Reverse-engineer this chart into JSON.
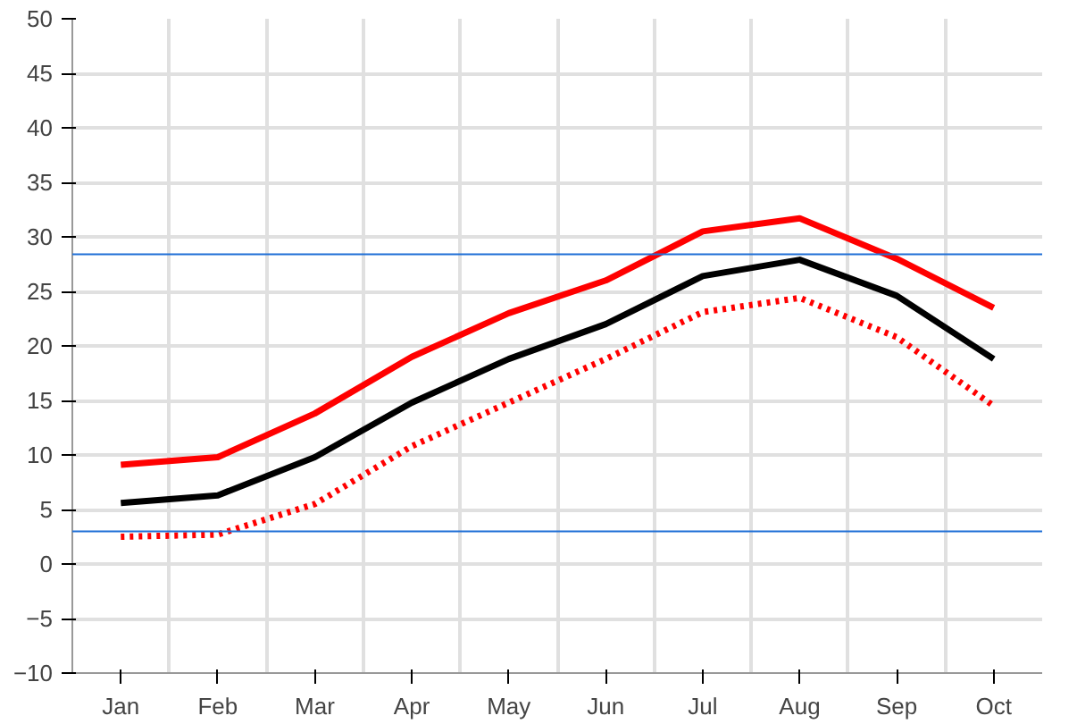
{
  "chart_data": {
    "type": "line",
    "categories": [
      "Jan",
      "Feb",
      "Mar",
      "Apr",
      "May",
      "Jun",
      "Jul",
      "Aug",
      "Sep",
      "Oct"
    ],
    "series": [
      {
        "color": "#ff0000",
        "values": [
          9.1,
          9.8,
          13.8,
          19,
          23,
          26,
          30.5,
          31.7,
          28,
          23.5
        ]
      },
      {
        "color": "#000000",
        "values": [
          5.6,
          6.3,
          9.8,
          14.8,
          18.8,
          22,
          26.4,
          27.9,
          24.6,
          18.8
        ]
      },
      {
        "color": "#ff0000",
        "line_style": "dotted",
        "values": [
          2.5,
          2.7,
          5.5,
          10.8,
          14.8,
          18.8,
          23.1,
          24.4,
          20.8,
          14.5
        ]
      }
    ],
    "ylim": [
      -10,
      50
    ],
    "yticks": [
      -10,
      -5,
      0,
      5,
      10,
      15,
      20,
      25,
      30,
      35,
      40,
      45,
      50
    ],
    "grid": true,
    "line_style": "solid",
    "ref_lines": [
      {
        "axis": "y",
        "value": 28.4,
        "color": "#1f6fd6"
      },
      {
        "axis": "y",
        "value": 3.0,
        "color": "#1f6fd6"
      }
    ]
  }
}
